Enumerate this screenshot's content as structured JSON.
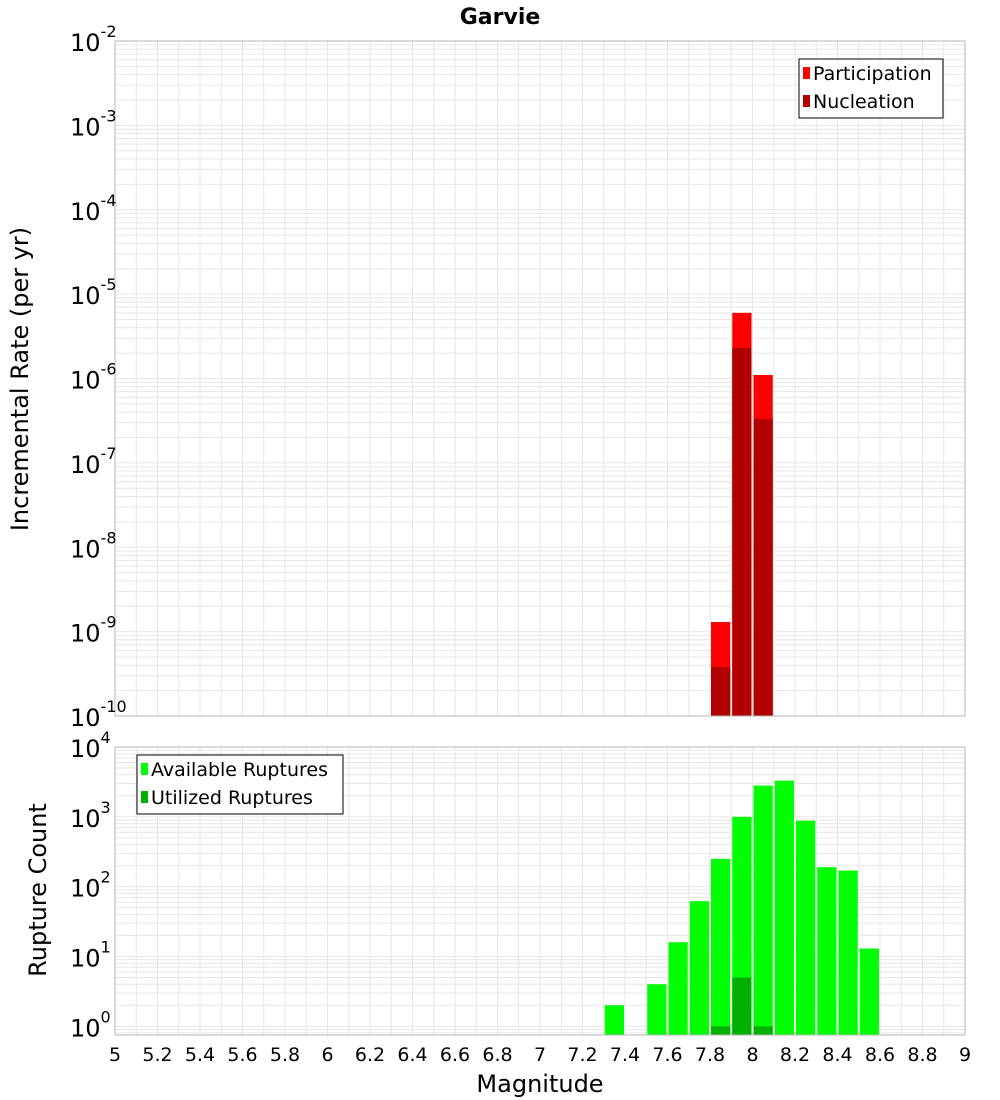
{
  "chart_data": [
    {
      "type": "bar",
      "title": "Garvie",
      "ylabel": "Incremental Rate (per yr)",
      "xlabel": "",
      "yscale": "log",
      "ylim": [
        1e-10,
        0.01
      ],
      "xlim": [
        5,
        9
      ],
      "grid": true,
      "legend_position": "top-right",
      "y_tick_labels": [
        {
          "value": 1e-10,
          "base": "10",
          "exp": "-10"
        },
        {
          "value": 1e-09,
          "base": "10",
          "exp": "-9"
        },
        {
          "value": 1e-08,
          "base": "10",
          "exp": "-8"
        },
        {
          "value": 1e-07,
          "base": "10",
          "exp": "-7"
        },
        {
          "value": 1e-06,
          "base": "10",
          "exp": "-6"
        },
        {
          "value": 1e-05,
          "base": "10",
          "exp": "-5"
        },
        {
          "value": 0.0001,
          "base": "10",
          "exp": "-4"
        },
        {
          "value": 0.001,
          "base": "10",
          "exp": "-3"
        },
        {
          "value": 0.01,
          "base": "10",
          "exp": "-2"
        }
      ],
      "bin_width": 0.1,
      "series": [
        {
          "name": "Participation",
          "color": "#ff0000",
          "x": [
            7.85,
            7.95,
            8.05
          ],
          "values": [
            1.3e-09,
            6e-06,
            1.1e-06
          ]
        },
        {
          "name": "Nucleation",
          "color": "#b00000",
          "x": [
            7.85,
            7.95,
            8.05
          ],
          "values": [
            3.8e-10,
            2.3e-06,
            3.3e-07
          ]
        }
      ]
    },
    {
      "type": "bar",
      "title": "",
      "ylabel": "Rupture Count",
      "xlabel": "Magnitude",
      "yscale": "log",
      "ylim": [
        0.75,
        10000
      ],
      "xlim": [
        5,
        9
      ],
      "grid": true,
      "legend_position": "top-left",
      "y_tick_labels": [
        {
          "value": 1,
          "base": "10",
          "exp": "0"
        },
        {
          "value": 10,
          "base": "10",
          "exp": "1"
        },
        {
          "value": 100,
          "base": "10",
          "exp": "2"
        },
        {
          "value": 1000,
          "base": "10",
          "exp": "3"
        },
        {
          "value": 10000,
          "base": "10",
          "exp": "4"
        }
      ],
      "x_tick_labels": [
        "5",
        "5.2",
        "5.4",
        "5.6",
        "5.8",
        "6",
        "6.2",
        "6.4",
        "6.6",
        "6.8",
        "7",
        "7.2",
        "7.4",
        "7.6",
        "7.8",
        "8",
        "8.2",
        "8.4",
        "8.6",
        "8.8",
        "9"
      ],
      "bin_width": 0.1,
      "series": [
        {
          "name": "Available Ruptures",
          "color": "#00ff00",
          "x": [
            7.35,
            7.55,
            7.65,
            7.75,
            7.85,
            7.95,
            8.05,
            8.15,
            8.25,
            8.35,
            8.45,
            8.55
          ],
          "values": [
            2,
            4,
            16,
            62,
            250,
            1000,
            2800,
            3300,
            880,
            190,
            170,
            13
          ]
        },
        {
          "name": "Utilized Ruptures",
          "color": "#00b000",
          "x": [
            7.85,
            7.95,
            8.05
          ],
          "values": [
            1,
            5,
            1
          ]
        }
      ]
    }
  ]
}
